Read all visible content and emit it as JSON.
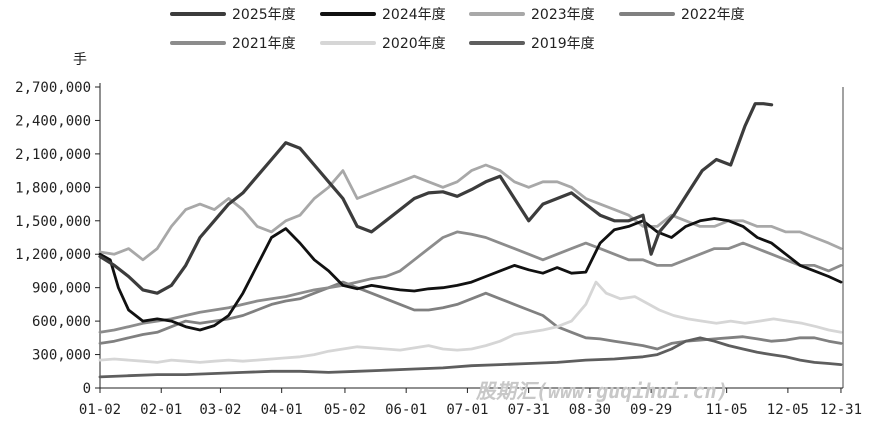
{
  "chart_data": {
    "type": "line",
    "unit_label": "手",
    "watermark": "股期汇(www.guqihui.cn)",
    "ylim": [
      0,
      2700000
    ],
    "y_ticks": [
      0,
      300000,
      600000,
      900000,
      1200000,
      1500000,
      1800000,
      2100000,
      2400000,
      2700000
    ],
    "y_tick_labels": [
      "0",
      "300,000",
      "600,000",
      "900,000",
      "1,200,000",
      "1,500,000",
      "1,800,000",
      "2,100,000",
      "2,400,000",
      "2,700,000"
    ],
    "x_domain_days": [
      1,
      365
    ],
    "x_ticks": [
      {
        "label": "01-02",
        "day": 1
      },
      {
        "label": "02-01",
        "day": 31
      },
      {
        "label": "03-02",
        "day": 60
      },
      {
        "label": "04-01",
        "day": 90
      },
      {
        "label": "05-02",
        "day": 121
      },
      {
        "label": "06-01",
        "day": 151
      },
      {
        "label": "07-01",
        "day": 181
      },
      {
        "label": "07-31",
        "day": 211
      },
      {
        "label": "08-30",
        "day": 241
      },
      {
        "label": "09-29",
        "day": 271
      },
      {
        "label": "11-05",
        "day": 308
      },
      {
        "label": "12-05",
        "day": 338
      },
      {
        "label": "12-31",
        "day": 364
      }
    ],
    "legend_position": "top",
    "series": [
      {
        "name": "2025年度",
        "color": "#3c3c3c",
        "width": 3.2,
        "x": [
          1,
          8,
          15,
          22,
          29,
          36,
          43,
          50,
          57,
          64,
          71,
          78,
          85,
          92,
          99,
          106,
          113,
          120,
          127,
          134,
          141,
          148,
          155,
          162,
          169,
          176,
          183,
          190,
          197,
          204,
          211,
          218,
          225,
          232,
          239,
          246,
          253,
          260,
          267,
          271,
          275,
          282,
          289,
          296,
          303,
          310,
          317,
          322,
          326,
          330
        ],
        "y": [
          1180000,
          1100000,
          1000000,
          880000,
          850000,
          920000,
          1100000,
          1350000,
          1500000,
          1650000,
          1750000,
          1900000,
          2050000,
          2200000,
          2150000,
          2000000,
          1850000,
          1700000,
          1450000,
          1400000,
          1500000,
          1600000,
          1700000,
          1750000,
          1760000,
          1720000,
          1780000,
          1850000,
          1900000,
          1700000,
          1500000,
          1650000,
          1700000,
          1750000,
          1650000,
          1550000,
          1500000,
          1500000,
          1550000,
          1200000,
          1400000,
          1550000,
          1750000,
          1950000,
          2050000,
          2000000,
          2350000,
          2550000,
          2550000,
          2540000
        ]
      },
      {
        "name": "2024年度",
        "color": "#111111",
        "width": 2.8,
        "x": [
          1,
          6,
          10,
          15,
          22,
          29,
          36,
          43,
          50,
          57,
          64,
          71,
          78,
          85,
          92,
          99,
          106,
          113,
          120,
          127,
          134,
          141,
          148,
          155,
          162,
          169,
          176,
          183,
          190,
          197,
          204,
          211,
          218,
          225,
          232,
          239,
          246,
          253,
          260,
          267,
          274,
          281,
          288,
          295,
          302,
          309,
          316,
          323,
          330,
          337,
          344,
          351,
          358,
          364
        ],
        "y": [
          1200000,
          1150000,
          900000,
          700000,
          600000,
          620000,
          600000,
          550000,
          520000,
          560000,
          650000,
          850000,
          1100000,
          1350000,
          1430000,
          1300000,
          1150000,
          1050000,
          920000,
          890000,
          920000,
          900000,
          880000,
          870000,
          890000,
          900000,
          920000,
          950000,
          1000000,
          1050000,
          1100000,
          1060000,
          1030000,
          1080000,
          1030000,
          1040000,
          1300000,
          1420000,
          1450000,
          1500000,
          1400000,
          1350000,
          1450000,
          1500000,
          1520000,
          1500000,
          1450000,
          1350000,
          1300000,
          1200000,
          1100000,
          1050000,
          1000000,
          950000
        ]
      },
      {
        "name": "2023年度",
        "color": "#a8a8a8",
        "width": 2.8,
        "x": [
          1,
          8,
          15,
          22,
          29,
          36,
          43,
          50,
          57,
          64,
          71,
          78,
          85,
          92,
          99,
          106,
          113,
          120,
          127,
          134,
          141,
          148,
          155,
          162,
          169,
          176,
          183,
          190,
          197,
          204,
          211,
          218,
          225,
          232,
          239,
          246,
          253,
          260,
          267,
          274,
          281,
          288,
          295,
          302,
          309,
          316,
          323,
          330,
          337,
          344,
          351,
          358,
          364
        ],
        "y": [
          1220000,
          1200000,
          1250000,
          1150000,
          1250000,
          1450000,
          1600000,
          1650000,
          1600000,
          1700000,
          1600000,
          1450000,
          1400000,
          1500000,
          1550000,
          1700000,
          1800000,
          1950000,
          1700000,
          1750000,
          1800000,
          1850000,
          1900000,
          1850000,
          1800000,
          1850000,
          1950000,
          2000000,
          1950000,
          1850000,
          1800000,
          1850000,
          1850000,
          1800000,
          1700000,
          1650000,
          1600000,
          1550000,
          1450000,
          1450000,
          1550000,
          1500000,
          1450000,
          1450000,
          1500000,
          1500000,
          1450000,
          1450000,
          1400000,
          1400000,
          1350000,
          1300000,
          1250000
        ]
      },
      {
        "name": "2022年度",
        "color": "#808080",
        "width": 2.8,
        "x": [
          1,
          8,
          15,
          22,
          29,
          36,
          43,
          50,
          57,
          64,
          71,
          78,
          85,
          92,
          99,
          106,
          113,
          120,
          127,
          134,
          141,
          148,
          155,
          162,
          169,
          176,
          183,
          190,
          197,
          204,
          211,
          218,
          225,
          232,
          239,
          246,
          253,
          260,
          267,
          274,
          281,
          288,
          295,
          302,
          309,
          316,
          323,
          330,
          337,
          344,
          351,
          358,
          364
        ],
        "y": [
          400000,
          420000,
          450000,
          480000,
          500000,
          550000,
          600000,
          580000,
          600000,
          620000,
          650000,
          700000,
          750000,
          780000,
          800000,
          850000,
          900000,
          950000,
          900000,
          850000,
          800000,
          750000,
          700000,
          700000,
          720000,
          750000,
          800000,
          850000,
          800000,
          750000,
          700000,
          650000,
          550000,
          500000,
          450000,
          440000,
          420000,
          400000,
          380000,
          350000,
          400000,
          420000,
          430000,
          440000,
          450000,
          460000,
          440000,
          420000,
          430000,
          450000,
          450000,
          420000,
          400000
        ]
      },
      {
        "name": "2021年度",
        "color": "#8c8c8c",
        "width": 2.8,
        "x": [
          1,
          8,
          15,
          22,
          29,
          36,
          43,
          50,
          57,
          64,
          71,
          78,
          85,
          92,
          99,
          106,
          113,
          120,
          127,
          134,
          141,
          148,
          155,
          162,
          169,
          176,
          183,
          190,
          197,
          204,
          211,
          218,
          225,
          232,
          239,
          246,
          253,
          260,
          267,
          274,
          281,
          288,
          295,
          302,
          309,
          316,
          323,
          330,
          337,
          344,
          351,
          358,
          364
        ],
        "y": [
          500000,
          520000,
          550000,
          580000,
          600000,
          620000,
          650000,
          680000,
          700000,
          720000,
          750000,
          780000,
          800000,
          820000,
          850000,
          880000,
          900000,
          920000,
          950000,
          980000,
          1000000,
          1050000,
          1150000,
          1250000,
          1350000,
          1400000,
          1380000,
          1350000,
          1300000,
          1250000,
          1200000,
          1150000,
          1200000,
          1250000,
          1300000,
          1250000,
          1200000,
          1150000,
          1150000,
          1100000,
          1100000,
          1150000,
          1200000,
          1250000,
          1250000,
          1300000,
          1250000,
          1200000,
          1150000,
          1100000,
          1100000,
          1050000,
          1100000
        ]
      },
      {
        "name": "2020年度",
        "color": "#d6d6d6",
        "width": 2.8,
        "x": [
          1,
          8,
          15,
          22,
          29,
          36,
          43,
          50,
          57,
          64,
          71,
          78,
          85,
          92,
          99,
          106,
          113,
          120,
          127,
          134,
          141,
          148,
          155,
          162,
          169,
          176,
          183,
          190,
          197,
          204,
          211,
          218,
          225,
          232,
          239,
          244,
          249,
          256,
          263,
          270,
          275,
          282,
          289,
          296,
          303,
          310,
          317,
          324,
          331,
          338,
          345,
          352,
          358,
          364
        ],
        "y": [
          250000,
          260000,
          250000,
          240000,
          230000,
          250000,
          240000,
          230000,
          240000,
          250000,
          240000,
          250000,
          260000,
          270000,
          280000,
          300000,
          330000,
          350000,
          370000,
          360000,
          350000,
          340000,
          360000,
          380000,
          350000,
          340000,
          350000,
          380000,
          420000,
          480000,
          500000,
          520000,
          550000,
          600000,
          750000,
          950000,
          850000,
          800000,
          820000,
          750000,
          700000,
          650000,
          620000,
          600000,
          580000,
          600000,
          580000,
          600000,
          620000,
          600000,
          580000,
          550000,
          520000,
          500000
        ]
      },
      {
        "name": "2019年度",
        "color": "#5e5e5e",
        "width": 2.8,
        "x": [
          1,
          15,
          29,
          43,
          57,
          71,
          85,
          99,
          113,
          127,
          141,
          155,
          169,
          183,
          197,
          211,
          225,
          239,
          253,
          267,
          274,
          281,
          288,
          295,
          302,
          309,
          316,
          323,
          330,
          337,
          344,
          351,
          358,
          364
        ],
        "y": [
          100000,
          110000,
          120000,
          120000,
          130000,
          140000,
          150000,
          150000,
          140000,
          150000,
          160000,
          170000,
          180000,
          200000,
          210000,
          220000,
          230000,
          250000,
          260000,
          280000,
          300000,
          350000,
          420000,
          450000,
          420000,
          380000,
          350000,
          320000,
          300000,
          280000,
          250000,
          230000,
          220000,
          210000
        ]
      }
    ]
  }
}
